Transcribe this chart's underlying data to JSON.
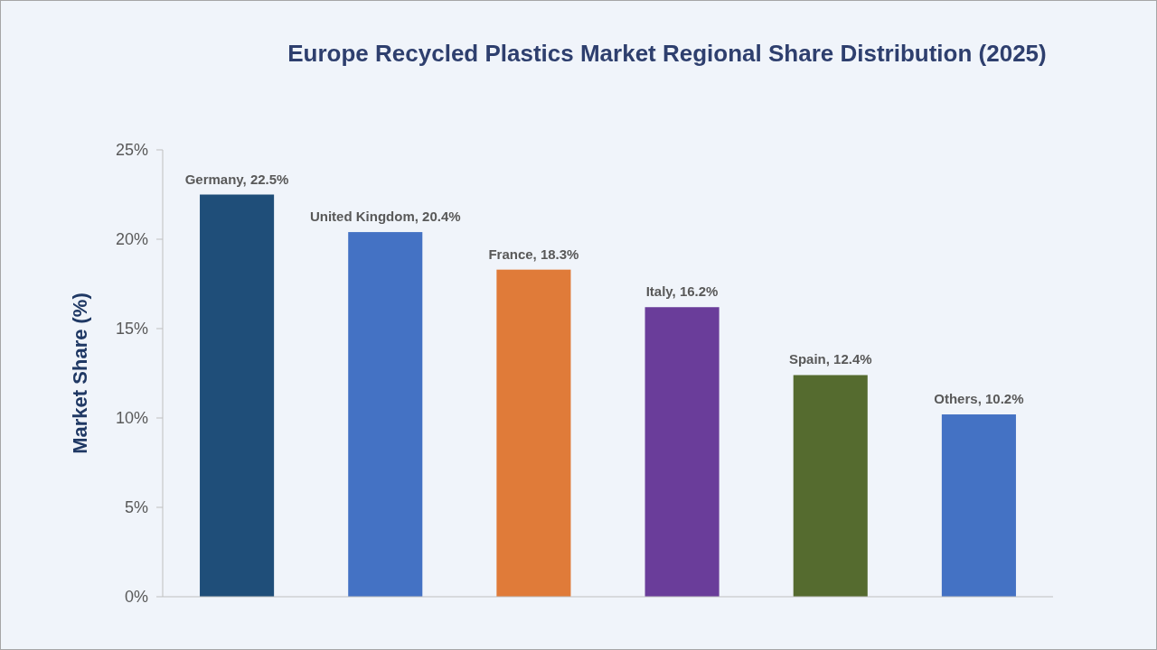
{
  "chart_data": {
    "type": "bar",
    "title": "Europe Recycled Plastics Market Regional Share Distribution (2025)",
    "ylabel": "Market Share (%)",
    "categories": [
      null,
      null,
      null,
      null,
      null,
      null
    ],
    "values": [
      22.5,
      20.4,
      18.3,
      16.2,
      12.4,
      10.2
    ],
    "colors": [
      "#1f4e79",
      "#4472c4",
      "#e07b39",
      "#6a3d9a",
      "#556b2f",
      "#4472c4"
    ],
    "value_labels": [
      "Germany, 22.5%",
      "United Kingdom, 20.4%",
      "France, 18.3%",
      "Italy, 16.2%",
      "Spain, 12.4%",
      "Others, 10.2%"
    ],
    "ylim": [
      0,
      25
    ],
    "yticks": [
      {
        "value": 0,
        "label": "0%"
      },
      {
        "value": 5,
        "label": "5%"
      },
      {
        "value": 10,
        "label": "10%"
      },
      {
        "value": 15,
        "label": "15%"
      },
      {
        "value": 20,
        "label": "20%"
      },
      {
        "value": 25,
        "label": "25%"
      }
    ],
    "tick_labels": "y",
    "grid": false
  }
}
